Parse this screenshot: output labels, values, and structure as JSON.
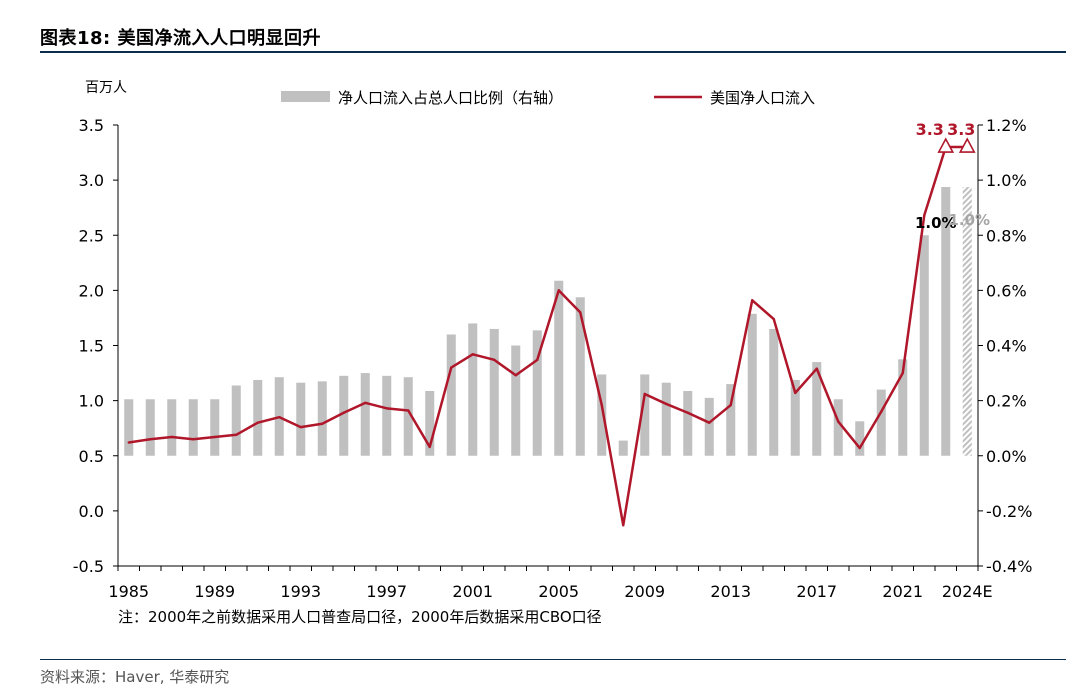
{
  "header": {
    "title": "图表18:  美国净流入人口明显回升"
  },
  "footer": {
    "note": "注：2000年之前数据采用人口普查局口径，2000年后数据采用CBO口径",
    "source": "资料来源：Haver, 华泰研究"
  },
  "colors": {
    "bar": "#c0c0c0",
    "line": "#b0172a",
    "axis": "#000000",
    "title_rule": "#0b2e4f"
  },
  "chart_data": {
    "type": "bar+line",
    "left_unit": "百万人",
    "legend": {
      "bar_label": "净人口流入占总人口比例（右轴）",
      "line_label": "美国净人口流入"
    },
    "legend_position": "top",
    "grid": false,
    "left_axis": {
      "min": -0.5,
      "max": 3.5,
      "ticks": [
        "3.5",
        "3.0",
        "2.5",
        "2.0",
        "1.5",
        "1.0",
        "0.5",
        "0.0",
        "-0.5"
      ]
    },
    "right_axis": {
      "min": -0.4,
      "max": 1.2,
      "ticks": [
        "1.2%",
        "1.0%",
        "0.8%",
        "0.6%",
        "0.4%",
        "0.2%",
        "0.0%",
        "-0.2%",
        "-0.4%"
      ]
    },
    "x_tick_labels": [
      "1985",
      "1989",
      "1993",
      "1997",
      "2001",
      "2005",
      "2009",
      "2013",
      "2017",
      "2021",
      "2024E"
    ],
    "categories": [
      "1985",
      "1986",
      "1987",
      "1988",
      "1989",
      "1990",
      "1991",
      "1992",
      "1993",
      "1994",
      "1995",
      "1996",
      "1997",
      "1998",
      "1999",
      "2000",
      "2001",
      "2002",
      "2003",
      "2004",
      "2005",
      "2006",
      "2007",
      "2008",
      "2009",
      "2010",
      "2011",
      "2012",
      "2013",
      "2014",
      "2015",
      "2016",
      "2017",
      "2018",
      "2019",
      "2020",
      "2021",
      "2022",
      "2023",
      "2024E"
    ],
    "series": [
      {
        "name": "净人口流入占总人口比例（右轴）",
        "type": "bar",
        "axis": "right",
        "values": [
          0.205,
          0.205,
          0.205,
          0.205,
          0.205,
          0.255,
          0.275,
          0.285,
          0.265,
          0.27,
          0.29,
          0.3,
          0.29,
          0.285,
          0.235,
          0.44,
          0.48,
          0.46,
          0.4,
          0.455,
          0.635,
          0.575,
          0.295,
          0.055,
          0.295,
          0.265,
          0.235,
          0.21,
          0.26,
          0.515,
          0.46,
          0.275,
          0.34,
          0.205,
          0.125,
          0.24,
          0.35,
          0.8,
          0.975,
          0.975
        ],
        "estimate_last": true
      },
      {
        "name": "美国净人口流入",
        "type": "line",
        "axis": "left",
        "values": [
          0.62,
          0.65,
          0.67,
          0.65,
          0.67,
          0.69,
          0.8,
          0.85,
          0.76,
          0.79,
          0.89,
          0.98,
          0.93,
          0.91,
          0.58,
          1.3,
          1.42,
          1.37,
          1.23,
          1.37,
          2.0,
          1.8,
          0.96,
          -0.13,
          1.06,
          0.97,
          0.89,
          0.8,
          0.96,
          1.91,
          1.74,
          1.07,
          1.29,
          0.81,
          0.57,
          0.9,
          1.25,
          2.68,
          3.3,
          3.3
        ]
      }
    ],
    "annotations": [
      {
        "text": "3.3",
        "category": "2023",
        "value": 3.3,
        "marker": "triangle"
      },
      {
        "text": "3.3",
        "category": "2024E",
        "value": 3.3,
        "marker": "triangle"
      },
      {
        "text": "1.0%",
        "category": "2023",
        "value": 0.975
      },
      {
        "text": "1.0%",
        "category": "2024E",
        "value": 0.975
      }
    ]
  }
}
